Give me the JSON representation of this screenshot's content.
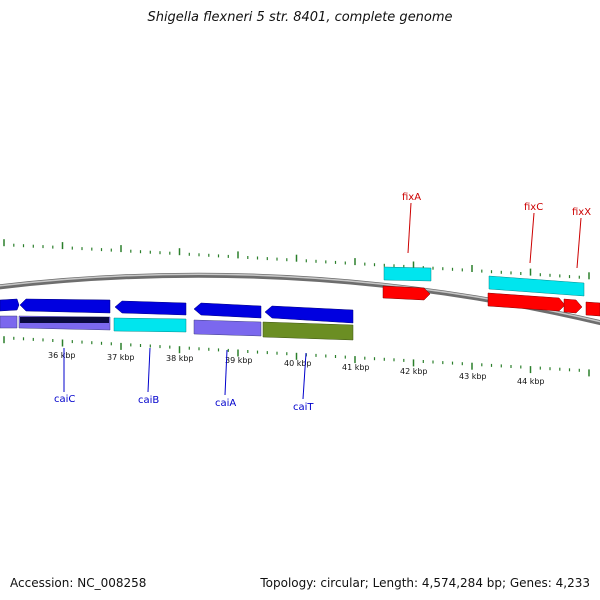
{
  "title": "Shigella flexneri 5 str. 8401, complete genome",
  "footer": {
    "accession": "Accession: NC_008258",
    "topology": "Topology: circular; Length: 4,574,284 bp; Genes: 4,233"
  },
  "colors": {
    "backbone": "#888888",
    "tick": "#2a7f2a",
    "gene_label_forward": "#cc0000",
    "gene_label_reverse": "#0000cc"
  },
  "scale": {
    "unit": "kbp",
    "labels": [
      "36 kbp",
      "37 kbp",
      "38 kbp",
      "39 kbp",
      "40 kbp",
      "41 kbp",
      "42 kbp",
      "43 kbp",
      "44 kbp"
    ]
  },
  "genes": [
    {
      "name": "caiC",
      "strand": "reverse"
    },
    {
      "name": "caiB",
      "strand": "reverse"
    },
    {
      "name": "caiA",
      "strand": "reverse"
    },
    {
      "name": "caiT",
      "strand": "reverse"
    },
    {
      "name": "fixA",
      "strand": "forward"
    },
    {
      "name": "fixC",
      "strand": "forward"
    },
    {
      "name": "fixX",
      "strand": "forward"
    }
  ]
}
